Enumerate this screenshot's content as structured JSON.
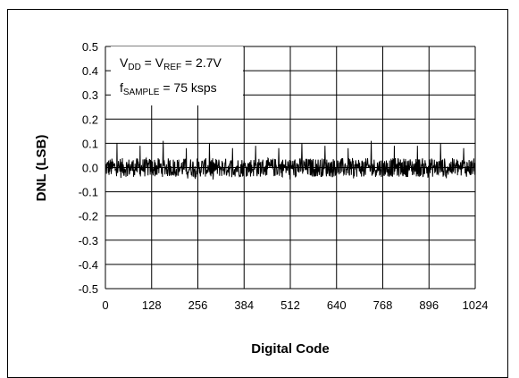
{
  "chart_data": {
    "type": "line",
    "title": "",
    "xlabel": "Digital Code",
    "ylabel": "DNL (LSB)",
    "xlim": [
      0,
      1024
    ],
    "ylim": [
      -0.5,
      0.5
    ],
    "xticks": [
      0,
      128,
      256,
      384,
      512,
      640,
      768,
      896,
      1024
    ],
    "yticks": [
      0.5,
      0.4,
      0.3,
      0.2,
      0.1,
      0.0,
      -0.1,
      -0.2,
      -0.3,
      -0.4,
      -0.5
    ],
    "ytick_labels": [
      "0.5",
      "0.4",
      "0.3",
      "0.2",
      "0.1",
      "0.0",
      "-0.1",
      "-0.2",
      "-0.3",
      "-0.4",
      "-0.5"
    ],
    "grid": true,
    "annotation": {
      "line1": {
        "v": "V",
        "dd": "DD",
        "eq": " = V",
        "ref": "REF",
        "val": " = 2.7V"
      },
      "line2": {
        "f": "f",
        "sample": "SAMPLE",
        "val": " = 75 ksps"
      }
    },
    "series": [
      {
        "noise_band": [
          -0.03,
          0.03
        ],
        "spikes": [
          {
            "x": 32,
            "y": 0.1
          },
          {
            "x": 96,
            "y": 0.09
          },
          {
            "x": 160,
            "y": 0.11
          },
          {
            "x": 224,
            "y": 0.08
          },
          {
            "x": 288,
            "y": 0.1
          },
          {
            "x": 352,
            "y": 0.08
          },
          {
            "x": 416,
            "y": 0.09
          },
          {
            "x": 480,
            "y": 0.08
          },
          {
            "x": 544,
            "y": 0.1
          },
          {
            "x": 608,
            "y": 0.09
          },
          {
            "x": 672,
            "y": 0.08
          },
          {
            "x": 736,
            "y": 0.11
          },
          {
            "x": 800,
            "y": 0.09
          },
          {
            "x": 864,
            "y": 0.09
          },
          {
            "x": 928,
            "y": 0.1
          },
          {
            "x": 992,
            "y": 0.08
          }
        ],
        "color": "#000000"
      }
    ]
  }
}
